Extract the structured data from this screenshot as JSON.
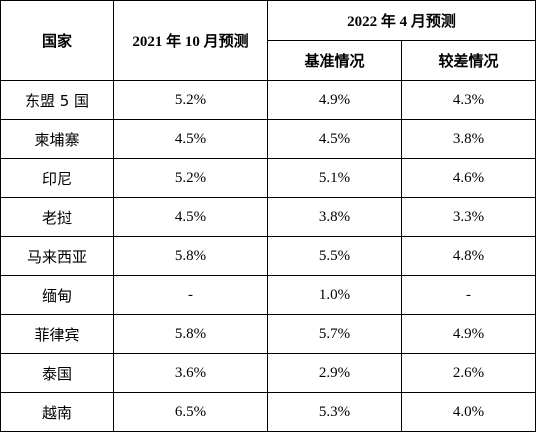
{
  "header": {
    "country_label": "国家",
    "oct2021_label": "2021 年 10 月预测",
    "apr2022_label": "2022 年 4 月预测",
    "baseline_label": "基准情况",
    "worse_label": "较差情况"
  },
  "rows": [
    {
      "country": "东盟 5 国",
      "oct2021": "5.2%",
      "baseline": "4.9%",
      "worse": "4.3%"
    },
    {
      "country": "柬埔寨",
      "oct2021": "4.5%",
      "baseline": "4.5%",
      "worse": "3.8%"
    },
    {
      "country": "印尼",
      "oct2021": "5.2%",
      "baseline": "5.1%",
      "worse": "4.6%"
    },
    {
      "country": "老挝",
      "oct2021": "4.5%",
      "baseline": "3.8%",
      "worse": "3.3%"
    },
    {
      "country": "马来西亚",
      "oct2021": "5.8%",
      "baseline": "5.5%",
      "worse": "4.8%"
    },
    {
      "country": "缅甸",
      "oct2021": "-",
      "baseline": "1.0%",
      "worse": "-"
    },
    {
      "country": "菲律宾",
      "oct2021": "5.8%",
      "baseline": "5.7%",
      "worse": "4.9%"
    },
    {
      "country": "泰国",
      "oct2021": "3.6%",
      "baseline": "2.9%",
      "worse": "2.6%"
    },
    {
      "country": "越南",
      "oct2021": "6.5%",
      "baseline": "5.3%",
      "worse": "4.0%"
    }
  ]
}
